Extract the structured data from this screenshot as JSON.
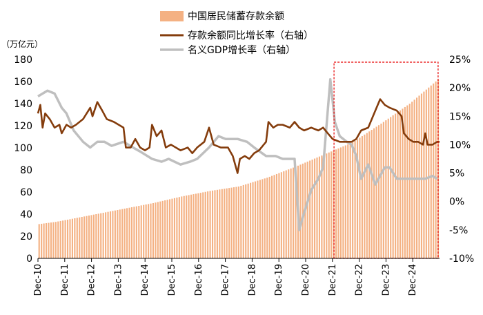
{
  "chart_data": {
    "type": "bar-line-combo",
    "y_unit_label": "（万亿元）",
    "left_axis": {
      "min": 0,
      "max": 180,
      "ticks": [
        0,
        20,
        40,
        60,
        80,
        100,
        120,
        140,
        160,
        180
      ]
    },
    "right_axis": {
      "min": -10,
      "max": 25,
      "ticks": [
        -10,
        -5,
        0,
        5,
        10,
        15,
        20,
        25
      ],
      "tick_labels": [
        "-10%",
        "-5%",
        "0%",
        "5%",
        "10%",
        "15%",
        "20%",
        "25%"
      ]
    },
    "x_ticks": [
      "Dec-10",
      "Dec-11",
      "Dec-12",
      "Dec-13",
      "Dec-14",
      "Dec-15",
      "Dec-16",
      "Dec-17",
      "Dec-18",
      "Dec-19",
      "Dec-20",
      "Dec-21",
      "Dec-22",
      "Dec-23",
      "Dec-24"
    ],
    "x_range": [
      2010.917,
      2025.0
    ],
    "legend": [
      {
        "label": "中国居民储蓄存款余额",
        "color": "#F4B183",
        "kind": "bar"
      },
      {
        "label": "存款余额同比增长率（右轴）",
        "color": "#843C0C",
        "kind": "line"
      },
      {
        "label": "名义GDP增长率（右轴）",
        "color": "#BFBFBF",
        "kind": "line"
      }
    ],
    "highlight_box": {
      "x_start": 2021.3,
      "x_end": 2024.95,
      "color": "#E60000",
      "style": "dashed"
    },
    "deposit_balance": {
      "name": "中国居民储蓄存款余额",
      "start": 2010.917,
      "step": 0.0833,
      "anchors": [
        [
          2010.917,
          31
        ],
        [
          2011.5,
          33
        ],
        [
          2011.917,
          35
        ],
        [
          2012.917,
          40
        ],
        [
          2013.917,
          45
        ],
        [
          2014.917,
          50
        ],
        [
          2015.917,
          56
        ],
        [
          2016.917,
          61
        ],
        [
          2017.917,
          65
        ],
        [
          2018.917,
          73
        ],
        [
          2019.917,
          83
        ],
        [
          2020.917,
          94
        ],
        [
          2021.917,
          105
        ],
        [
          2022.917,
          122
        ],
        [
          2023.917,
          140
        ],
        [
          2024.917,
          162
        ]
      ]
    },
    "deposit_growth": {
      "name": "存款余额同比增长率（右轴）",
      "points": [
        [
          2010.917,
          15.5
        ],
        [
          2011.0,
          17.0
        ],
        [
          2011.08,
          13.0
        ],
        [
          2011.17,
          15.5
        ],
        [
          2011.33,
          14.5
        ],
        [
          2011.5,
          13.0
        ],
        [
          2011.67,
          13.5
        ],
        [
          2011.75,
          12.0
        ],
        [
          2011.917,
          13.5
        ],
        [
          2012.08,
          13.0
        ],
        [
          2012.25,
          13.5
        ],
        [
          2012.5,
          14.5
        ],
        [
          2012.75,
          16.5
        ],
        [
          2012.83,
          15.0
        ],
        [
          2013.0,
          17.5
        ],
        [
          2013.17,
          16.0
        ],
        [
          2013.33,
          14.5
        ],
        [
          2013.58,
          14.0
        ],
        [
          2013.917,
          13.0
        ],
        [
          2014.0,
          9.5
        ],
        [
          2014.17,
          9.5
        ],
        [
          2014.33,
          11.0
        ],
        [
          2014.5,
          9.5
        ],
        [
          2014.67,
          9.0
        ],
        [
          2014.83,
          9.5
        ],
        [
          2014.917,
          13.5
        ],
        [
          2015.08,
          11.5
        ],
        [
          2015.25,
          12.5
        ],
        [
          2015.4,
          9.5
        ],
        [
          2015.58,
          10.0
        ],
        [
          2015.75,
          9.5
        ],
        [
          2015.917,
          9.0
        ],
        [
          2016.17,
          9.5
        ],
        [
          2016.33,
          8.5
        ],
        [
          2016.5,
          9.5
        ],
        [
          2016.75,
          10.5
        ],
        [
          2016.917,
          13.0
        ],
        [
          2017.08,
          10.0
        ],
        [
          2017.33,
          9.5
        ],
        [
          2017.58,
          9.5
        ],
        [
          2017.75,
          8.0
        ],
        [
          2017.917,
          5.0
        ],
        [
          2018.0,
          7.5
        ],
        [
          2018.17,
          8.0
        ],
        [
          2018.33,
          7.5
        ],
        [
          2018.5,
          8.5
        ],
        [
          2018.67,
          9.0
        ],
        [
          2018.917,
          10.5
        ],
        [
          2019.0,
          14.0
        ],
        [
          2019.17,
          13.0
        ],
        [
          2019.33,
          13.5
        ],
        [
          2019.5,
          13.5
        ],
        [
          2019.75,
          13.0
        ],
        [
          2019.917,
          14.0
        ],
        [
          2020.08,
          13.0
        ],
        [
          2020.25,
          12.5
        ],
        [
          2020.5,
          13.0
        ],
        [
          2020.75,
          12.5
        ],
        [
          2020.917,
          13.0
        ],
        [
          2021.08,
          12.0
        ],
        [
          2021.25,
          11.0
        ],
        [
          2021.5,
          10.5
        ],
        [
          2021.75,
          10.5
        ],
        [
          2021.917,
          10.5
        ],
        [
          2022.08,
          11.0
        ],
        [
          2022.25,
          12.5
        ],
        [
          2022.5,
          13.0
        ],
        [
          2022.75,
          16.0
        ],
        [
          2022.917,
          18.0
        ],
        [
          2023.08,
          17.0
        ],
        [
          2023.25,
          16.5
        ],
        [
          2023.5,
          16.0
        ],
        [
          2023.67,
          15.0
        ],
        [
          2023.75,
          12.0
        ],
        [
          2023.917,
          11.0
        ],
        [
          2024.08,
          10.5
        ],
        [
          2024.25,
          10.5
        ],
        [
          2024.42,
          10.0
        ],
        [
          2024.5,
          12.0
        ],
        [
          2024.58,
          10.0
        ],
        [
          2024.75,
          10.0
        ],
        [
          2024.917,
          10.5
        ],
        [
          2025.0,
          10.5
        ]
      ]
    },
    "gdp_growth": {
      "name": "名义GDP增长率（右轴）",
      "points": [
        [
          2010.917,
          18.5
        ],
        [
          2011.25,
          19.5
        ],
        [
          2011.5,
          19.0
        ],
        [
          2011.75,
          16.5
        ],
        [
          2011.917,
          15.5
        ],
        [
          2012.17,
          12.5
        ],
        [
          2012.5,
          10.5
        ],
        [
          2012.75,
          9.5
        ],
        [
          2013.0,
          10.5
        ],
        [
          2013.25,
          10.5
        ],
        [
          2013.5,
          9.8
        ],
        [
          2013.917,
          10.5
        ],
        [
          2014.25,
          9.5
        ],
        [
          2014.5,
          8.8
        ],
        [
          2014.917,
          7.5
        ],
        [
          2015.25,
          7.0
        ],
        [
          2015.5,
          7.5
        ],
        [
          2015.917,
          6.5
        ],
        [
          2016.25,
          7.0
        ],
        [
          2016.5,
          7.5
        ],
        [
          2016.917,
          9.5
        ],
        [
          2017.25,
          11.5
        ],
        [
          2017.5,
          11.0
        ],
        [
          2017.917,
          11.0
        ],
        [
          2018.25,
          10.5
        ],
        [
          2018.5,
          9.5
        ],
        [
          2018.917,
          8.0
        ],
        [
          2019.25,
          8.0
        ],
        [
          2019.5,
          7.5
        ],
        [
          2019.917,
          7.5
        ],
        [
          2020.08,
          -5.0
        ],
        [
          2020.25,
          -2.0
        ],
        [
          2020.5,
          2.0
        ],
        [
          2020.75,
          4.0
        ],
        [
          2020.917,
          6.0
        ],
        [
          2021.17,
          21.5
        ],
        [
          2021.33,
          14.0
        ],
        [
          2021.5,
          11.5
        ],
        [
          2021.75,
          10.5
        ],
        [
          2021.917,
          10.0
        ],
        [
          2022.08,
          8.0
        ],
        [
          2022.25,
          4.0
        ],
        [
          2022.5,
          6.5
        ],
        [
          2022.75,
          3.0
        ],
        [
          2022.917,
          4.5
        ],
        [
          2023.08,
          6.0
        ],
        [
          2023.25,
          6.0
        ],
        [
          2023.5,
          4.0
        ],
        [
          2023.917,
          4.0
        ],
        [
          2024.25,
          4.0
        ],
        [
          2024.5,
          4.0
        ],
        [
          2024.75,
          4.5
        ],
        [
          2024.917,
          4.0
        ]
      ]
    }
  }
}
